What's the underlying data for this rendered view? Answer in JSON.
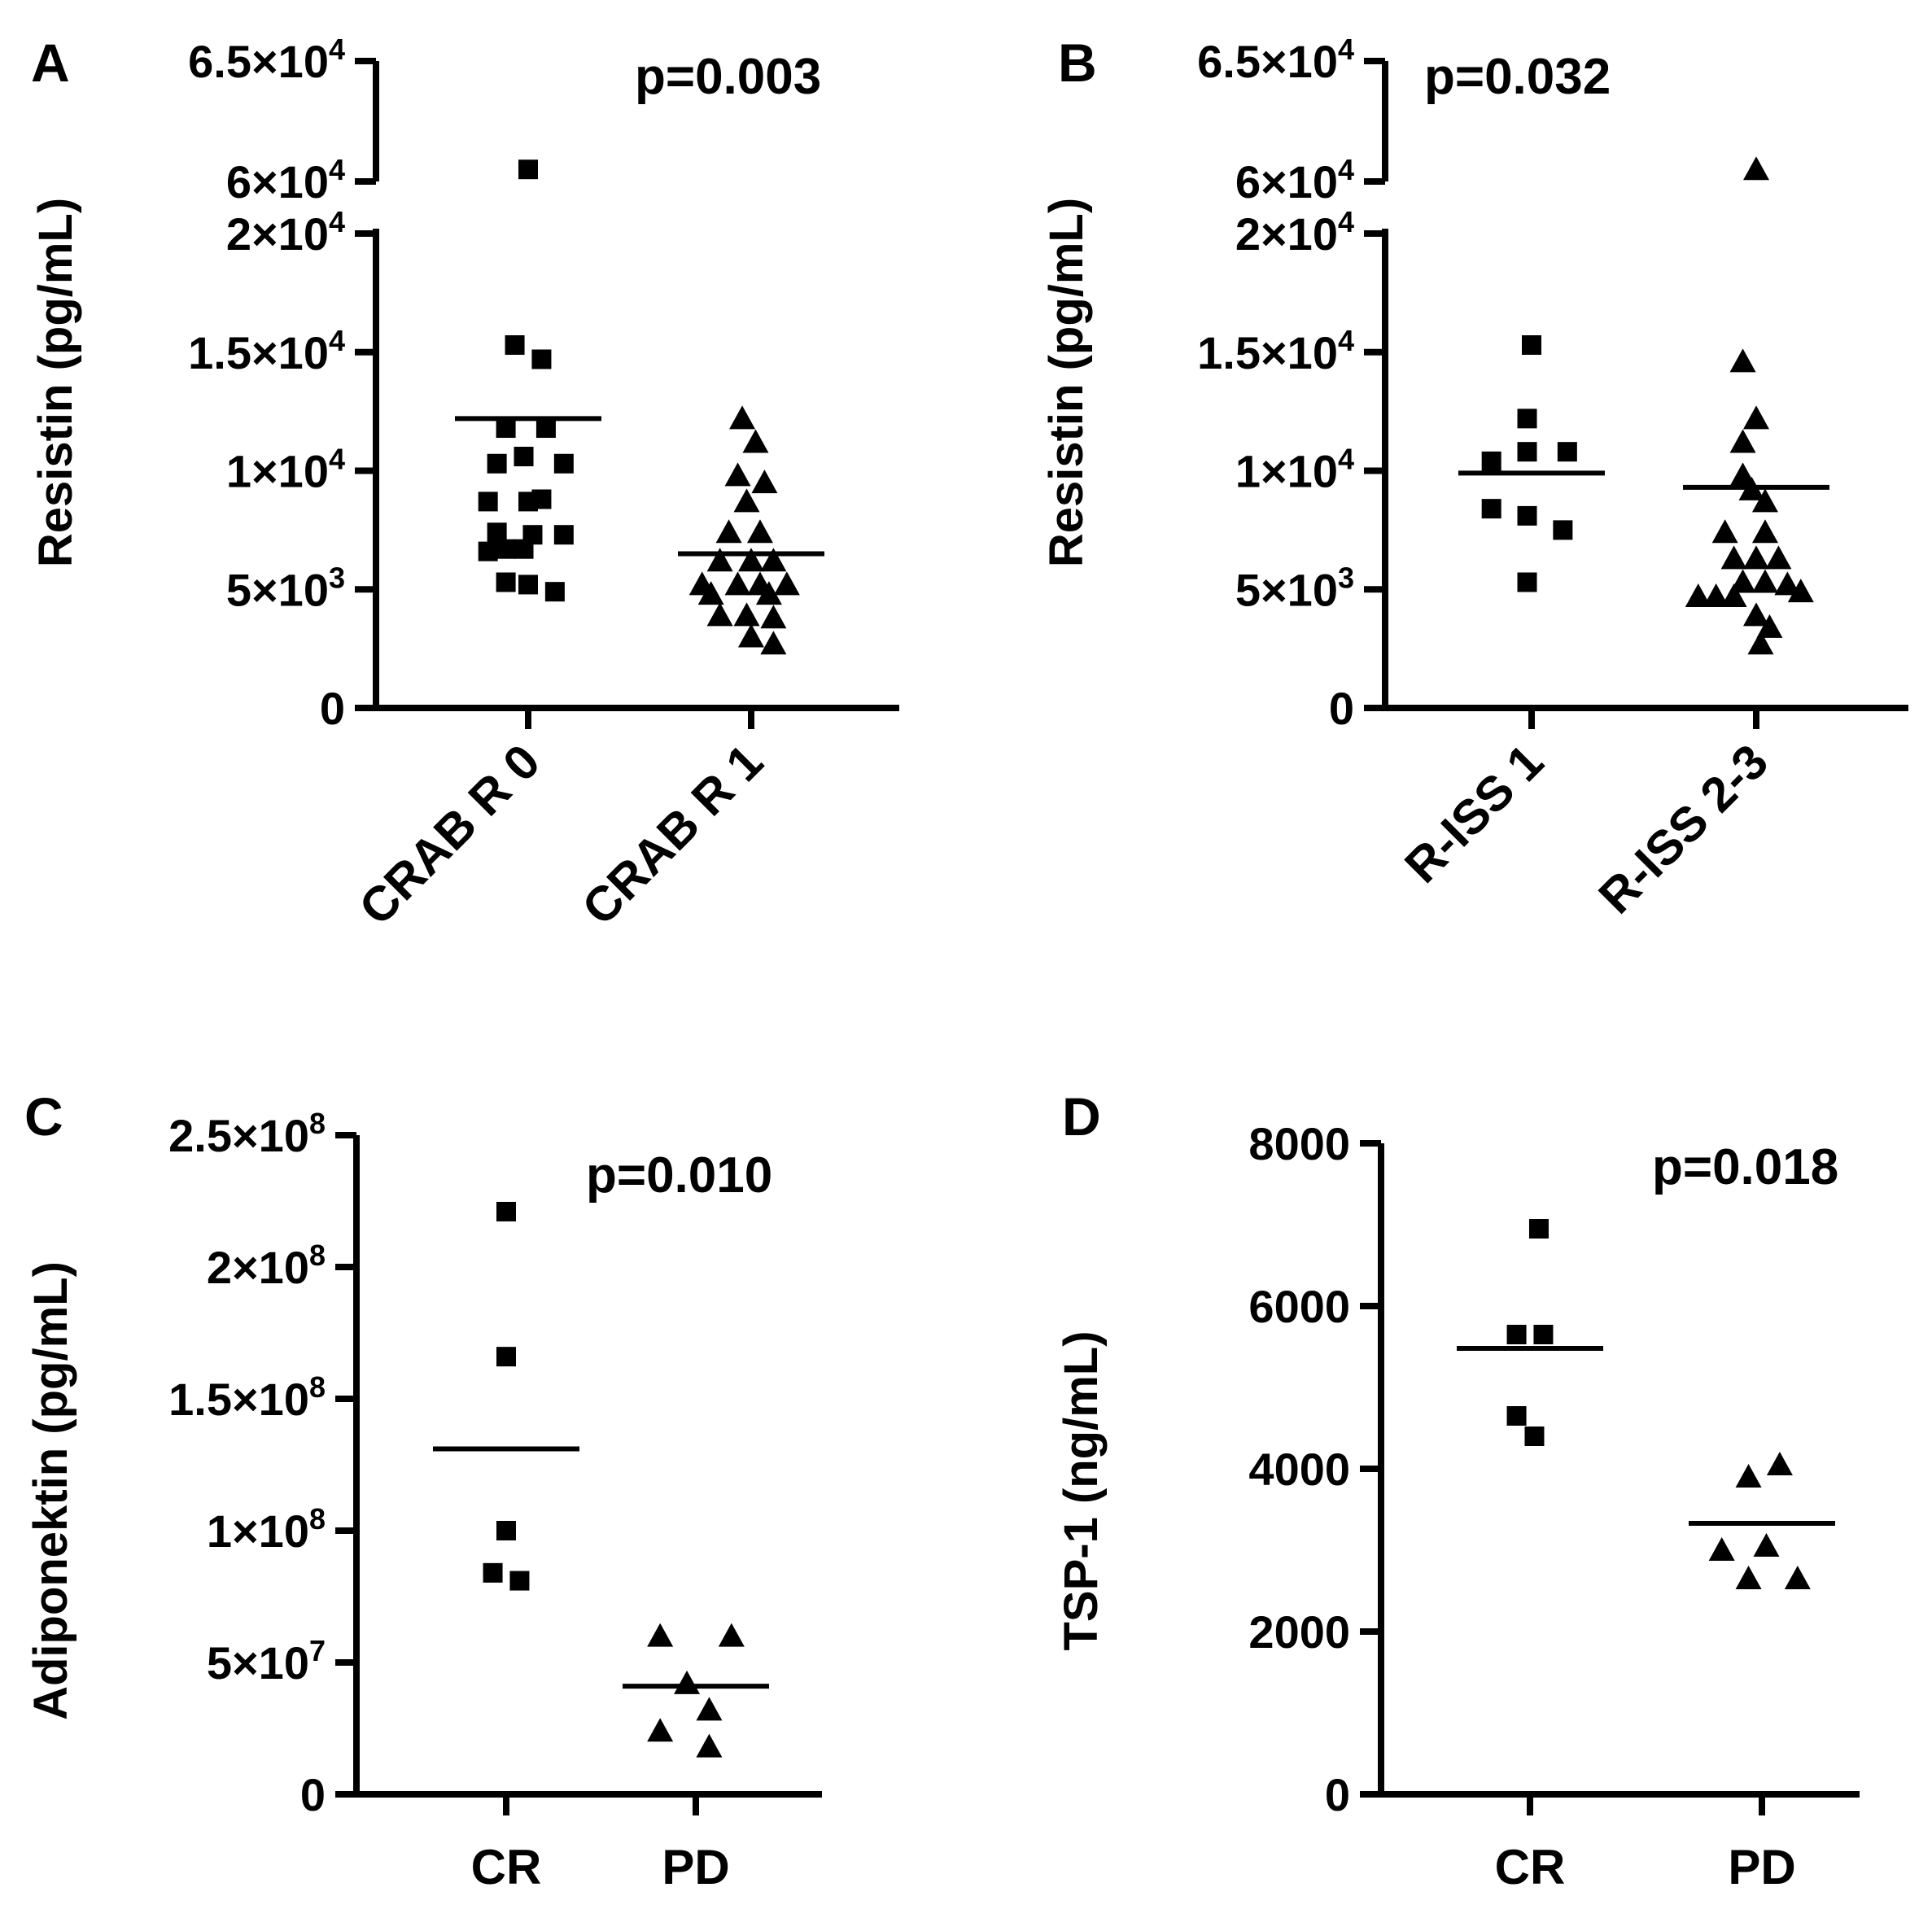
{
  "chart_data": [
    {
      "panel": "A",
      "type": "scatter",
      "ylabel": "Resistin (pg/mL)",
      "p_value": "p=0.003",
      "rotated_categories": true,
      "categories": [
        "CRAB R 0",
        "CRAB R 1"
      ],
      "y_segments": [
        {
          "range": [
            0,
            20000
          ],
          "ticks": [
            {
              "value": 0,
              "base": "0",
              "exp": ""
            },
            {
              "value": 5000,
              "base": "5×10",
              "exp": "3"
            },
            {
              "value": 10000,
              "base": "1×10",
              "exp": "4"
            },
            {
              "value": 15000,
              "base": "1.5×10",
              "exp": "4"
            },
            {
              "value": 20000,
              "base": "2×10",
              "exp": "4"
            }
          ]
        },
        {
          "range": [
            60000,
            65000
          ],
          "ticks": [
            {
              "value": 60000,
              "base": "6×10",
              "exp": "4"
            },
            {
              "value": 65000,
              "base": "6.5×10",
              "exp": "4"
            }
          ]
        }
      ],
      "series": [
        {
          "name": "CRAB R 0",
          "marker": "square",
          "mean": 12200,
          "points": [
            {
              "x": 0.0,
              "y": 60500
            },
            {
              "x": -0.06,
              "y": 15300
            },
            {
              "x": 0.06,
              "y": 14700
            },
            {
              "x": -0.1,
              "y": 11800
            },
            {
              "x": 0.08,
              "y": 11800
            },
            {
              "x": -0.02,
              "y": 10600
            },
            {
              "x": -0.14,
              "y": 10300
            },
            {
              "x": 0.16,
              "y": 10300
            },
            {
              "x": -0.18,
              "y": 8700
            },
            {
              "x": 0.0,
              "y": 8700
            },
            {
              "x": 0.06,
              "y": 8800
            },
            {
              "x": -0.14,
              "y": 7400
            },
            {
              "x": 0.02,
              "y": 7300
            },
            {
              "x": 0.16,
              "y": 7300
            },
            {
              "x": -0.18,
              "y": 6600
            },
            {
              "x": -0.1,
              "y": 6700
            },
            {
              "x": -0.02,
              "y": 6700
            },
            {
              "x": -0.1,
              "y": 5300
            },
            {
              "x": 0.0,
              "y": 5200
            },
            {
              "x": 0.12,
              "y": 4900
            }
          ]
        },
        {
          "name": "CRAB R 1",
          "marker": "triangle",
          "mean": 6500,
          "points": [
            {
              "x": -0.04,
              "y": 12200
            },
            {
              "x": 0.02,
              "y": 11200
            },
            {
              "x": -0.06,
              "y": 9800
            },
            {
              "x": 0.06,
              "y": 9500
            },
            {
              "x": -0.02,
              "y": 8700
            },
            {
              "x": -0.1,
              "y": 7400
            },
            {
              "x": 0.04,
              "y": 7400
            },
            {
              "x": -0.14,
              "y": 6200
            },
            {
              "x": 0.0,
              "y": 6200
            },
            {
              "x": 0.1,
              "y": 6200
            },
            {
              "x": -0.22,
              "y": 5200
            },
            {
              "x": -0.06,
              "y": 5200
            },
            {
              "x": 0.04,
              "y": 5200
            },
            {
              "x": 0.16,
              "y": 5200
            },
            {
              "x": -0.18,
              "y": 4800
            },
            {
              "x": 0.08,
              "y": 4800
            },
            {
              "x": -0.14,
              "y": 3900
            },
            {
              "x": -0.02,
              "y": 3900
            },
            {
              "x": 0.1,
              "y": 3800
            },
            {
              "x": 0.0,
              "y": 3000
            },
            {
              "x": 0.1,
              "y": 2700
            }
          ]
        }
      ]
    },
    {
      "panel": "B",
      "type": "scatter",
      "ylabel": "Resistin (pg/mL)",
      "p_value": "p=0.032",
      "rotated_categories": true,
      "categories": [
        "R-ISS 1",
        "R-ISS 2-3"
      ],
      "y_segments": [
        {
          "range": [
            0,
            20000
          ],
          "ticks": [
            {
              "value": 0,
              "base": "0",
              "exp": ""
            },
            {
              "value": 5000,
              "base": "5×10",
              "exp": "3"
            },
            {
              "value": 10000,
              "base": "1×10",
              "exp": "4"
            },
            {
              "value": 15000,
              "base": "1.5×10",
              "exp": "4"
            },
            {
              "value": 20000,
              "base": "2×10",
              "exp": "4"
            }
          ]
        },
        {
          "range": [
            60000,
            65000
          ],
          "ticks": [
            {
              "value": 60000,
              "base": "6×10",
              "exp": "4"
            },
            {
              "value": 65000,
              "base": "6.5×10",
              "exp": "4"
            }
          ]
        }
      ],
      "series": [
        {
          "name": "R-ISS 1",
          "marker": "square",
          "mean": 9900,
          "points": [
            {
              "x": 0.0,
              "y": 15300
            },
            {
              "x": -0.02,
              "y": 12200
            },
            {
              "x": -0.18,
              "y": 10400
            },
            {
              "x": -0.02,
              "y": 10800
            },
            {
              "x": 0.16,
              "y": 10800
            },
            {
              "x": -0.18,
              "y": 8400
            },
            {
              "x": -0.02,
              "y": 8100
            },
            {
              "x": 0.14,
              "y": 7500
            },
            {
              "x": -0.02,
              "y": 5300
            }
          ]
        },
        {
          "name": "R-ISS 2-3",
          "marker": "triangle",
          "mean": 9300,
          "points": [
            {
              "x": 0.0,
              "y": 60500
            },
            {
              "x": -0.06,
              "y": 14600
            },
            {
              "x": 0.0,
              "y": 12200
            },
            {
              "x": -0.06,
              "y": 11200
            },
            {
              "x": -0.06,
              "y": 9800
            },
            {
              "x": -0.02,
              "y": 9200
            },
            {
              "x": 0.04,
              "y": 8700
            },
            {
              "x": -0.14,
              "y": 7400
            },
            {
              "x": 0.04,
              "y": 7400
            },
            {
              "x": -0.1,
              "y": 6300
            },
            {
              "x": 0.0,
              "y": 6300
            },
            {
              "x": 0.1,
              "y": 6300
            },
            {
              "x": -0.06,
              "y": 5300
            },
            {
              "x": 0.04,
              "y": 5300
            },
            {
              "x": 0.14,
              "y": 5200
            },
            {
              "x": -0.26,
              "y": 4700
            },
            {
              "x": -0.18,
              "y": 4700
            },
            {
              "x": -0.1,
              "y": 4700
            },
            {
              "x": 0.2,
              "y": 4900
            },
            {
              "x": 0.0,
              "y": 3900
            },
            {
              "x": 0.06,
              "y": 3400
            },
            {
              "x": 0.02,
              "y": 2700
            }
          ]
        }
      ]
    },
    {
      "panel": "C",
      "type": "scatter",
      "ylabel": "Adiponektin (pg/mL)",
      "p_value": "p=0.010",
      "rotated_categories": false,
      "categories": [
        "CR",
        "PD"
      ],
      "y_segments": [
        {
          "range": [
            0,
            250000000
          ],
          "ticks": [
            {
              "value": 0,
              "base": "0",
              "exp": ""
            },
            {
              "value": 50000000,
              "base": "5×10",
              "exp": "7"
            },
            {
              "value": 100000000,
              "base": "1×10",
              "exp": "8"
            },
            {
              "value": 150000000,
              "base": "1.5×10",
              "exp": "8"
            },
            {
              "value": 200000000,
              "base": "2×10",
              "exp": "8"
            },
            {
              "value": 250000000,
              "base": "2.5×10",
              "exp": "8"
            }
          ]
        }
      ],
      "series": [
        {
          "name": "CR",
          "marker": "square",
          "mean": 131000000,
          "points": [
            {
              "x": 0.0,
              "y": 221000000
            },
            {
              "x": 0.0,
              "y": 166000000
            },
            {
              "x": 0.0,
              "y": 100000000
            },
            {
              "x": -0.06,
              "y": 84000000
            },
            {
              "x": 0.06,
              "y": 81000000
            }
          ]
        },
        {
          "name": "PD",
          "marker": "triangle",
          "mean": 41000000,
          "points": [
            {
              "x": -0.16,
              "y": 60000000
            },
            {
              "x": 0.16,
              "y": 60000000
            },
            {
              "x": -0.04,
              "y": 42000000
            },
            {
              "x": 0.06,
              "y": 32000000
            },
            {
              "x": -0.16,
              "y": 24000000
            },
            {
              "x": 0.06,
              "y": 18000000
            }
          ]
        }
      ]
    },
    {
      "panel": "D",
      "type": "scatter",
      "ylabel": "TSP-1 (ng/mL)",
      "p_value": "p=0.018",
      "rotated_categories": false,
      "categories": [
        "CR",
        "PD"
      ],
      "y_segments": [
        {
          "range": [
            0,
            8000
          ],
          "ticks": [
            {
              "value": 0,
              "base": "0",
              "exp": ""
            },
            {
              "value": 2000,
              "base": "2000",
              "exp": ""
            },
            {
              "value": 4000,
              "base": "4000",
              "exp": ""
            },
            {
              "value": 6000,
              "base": "6000",
              "exp": ""
            },
            {
              "value": 8000,
              "base": "8000",
              "exp": ""
            }
          ]
        }
      ],
      "series": [
        {
          "name": "CR",
          "marker": "square",
          "mean": 5480,
          "points": [
            {
              "x": 0.04,
              "y": 6950
            },
            {
              "x": -0.06,
              "y": 5650
            },
            {
              "x": 0.06,
              "y": 5650
            },
            {
              "x": -0.06,
              "y": 4650
            },
            {
              "x": 0.02,
              "y": 4400
            }
          ]
        },
        {
          "name": "PD",
          "marker": "triangle",
          "mean": 3330,
          "points": [
            {
              "x": -0.06,
              "y": 3900
            },
            {
              "x": 0.08,
              "y": 4050
            },
            {
              "x": -0.18,
              "y": 3000
            },
            {
              "x": 0.02,
              "y": 3050
            },
            {
              "x": -0.06,
              "y": 2650
            },
            {
              "x": 0.16,
              "y": 2650
            }
          ]
        }
      ]
    }
  ]
}
